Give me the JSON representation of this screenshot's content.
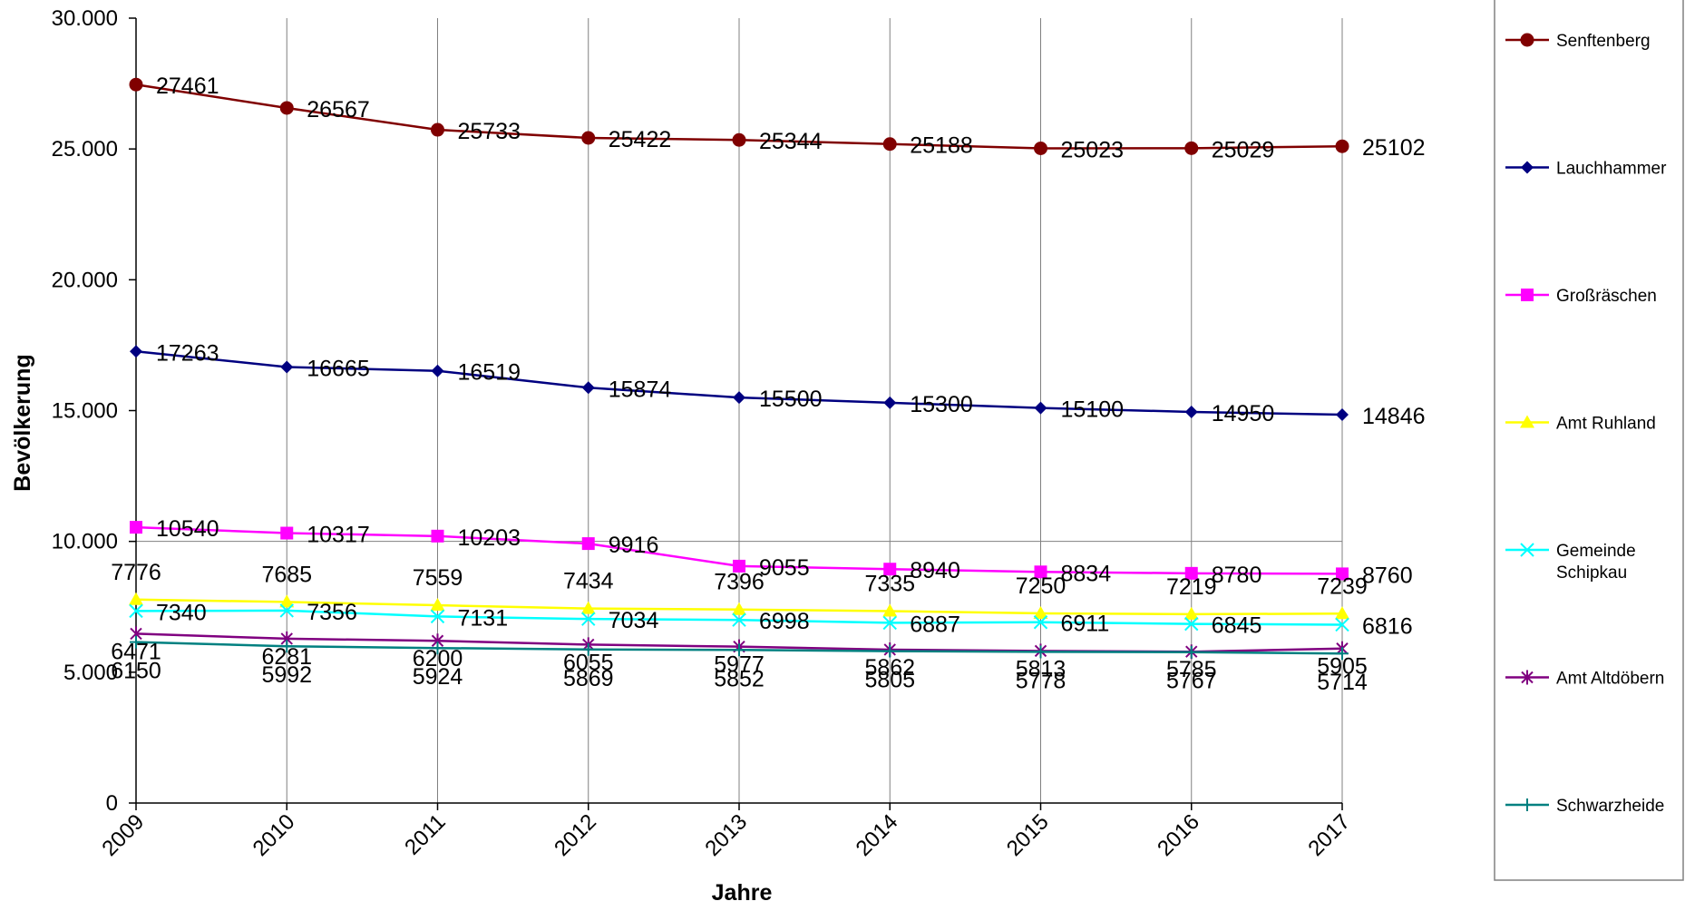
{
  "chart_data": {
    "type": "line",
    "title": "",
    "xlabel": "Jahre",
    "ylabel": "Bevölkerung",
    "ylim": [
      0,
      30000
    ],
    "yticks": [
      0,
      5000,
      10000,
      15000,
      20000,
      25000,
      30000
    ],
    "ytick_labels": [
      "0",
      "5.000",
      "10.000",
      "15.000",
      "20.000",
      "25.000",
      "30.000"
    ],
    "categories": [
      "2009",
      "2010",
      "2011",
      "2012",
      "2013",
      "2014",
      "2015",
      "2016",
      "2017"
    ],
    "grid": "vertical",
    "legend_position": "right",
    "series": [
      {
        "name": "Senftenberg",
        "color": "#800000",
        "marker": "circle",
        "values": [
          27461,
          26567,
          25733,
          25422,
          25344,
          25188,
          25023,
          25029,
          25102
        ]
      },
      {
        "name": "Lauchhammer",
        "color": "#000080",
        "marker": "diamond",
        "values": [
          17263,
          16665,
          16519,
          15874,
          15500,
          15300,
          15100,
          14950,
          14846
        ]
      },
      {
        "name": "Großräschen",
        "color": "#ff00ff",
        "marker": "square",
        "values": [
          10540,
          10317,
          10203,
          9916,
          9055,
          8940,
          8834,
          8780,
          8760
        ]
      },
      {
        "name": "Amt Ruhland",
        "color": "#ffff00",
        "marker": "triangle",
        "values": [
          7776,
          7685,
          7559,
          7434,
          7396,
          7335,
          7250,
          7219,
          7239
        ]
      },
      {
        "name": "Gemeinde Schipkau",
        "color": "#00ffff",
        "marker": "x",
        "values": [
          7340,
          7356,
          7131,
          7034,
          6998,
          6887,
          6911,
          6845,
          6816
        ]
      },
      {
        "name": "Amt Altdöbern",
        "color": "#800080",
        "marker": "star",
        "values": [
          6471,
          6281,
          6200,
          6055,
          5977,
          5862,
          5813,
          5785,
          5905
        ]
      },
      {
        "name": "Schwarzheide",
        "color": "#008080",
        "marker": "plus",
        "values": [
          6150,
          5992,
          5924,
          5869,
          5852,
          5805,
          5778,
          5767,
          5714
        ]
      }
    ]
  }
}
